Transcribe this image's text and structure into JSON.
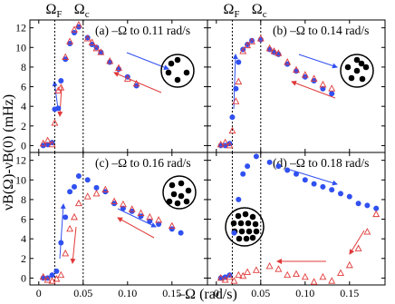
{
  "figure": {
    "xlabel": "–Ω (rad/s)",
    "ylabel": "νB(Ω)-νB(0) (mHz)",
    "vlines": [
      {
        "value": 0.018,
        "symbol": "Ω",
        "sub": "F"
      },
      {
        "value": 0.05,
        "symbol": "Ω",
        "sub": "c"
      }
    ]
  },
  "chart_data": [
    {
      "type": "scatter",
      "title": "(a) –Ω to 0.11 rad/s",
      "xlim": [
        -0.01,
        0.19
      ],
      "ylim": [
        -0.7,
        12.8
      ],
      "xticks": [
        0,
        0.05,
        {
          "value": 0.1,
          "label": "0.10"
        },
        0.15
      ],
      "yticks": [
        0,
        2,
        4,
        6,
        8,
        10,
        12
      ],
      "x": [
        0.005,
        0.01,
        0.015,
        0.018,
        0.022,
        0.025,
        0.03,
        0.035,
        0.04,
        0.045,
        0.055,
        0.06,
        0.065,
        0.07,
        0.08,
        0.09,
        0.1,
        0.11
      ],
      "series": [
        {
          "color": "#3050f0",
          "marker": "circle",
          "values": [
            0,
            0.1,
            0.3,
            3.7,
            3.8,
            6.6,
            8.8,
            10.4,
            11.5,
            12.1,
            11.0,
            10.3,
            10.0,
            9.5,
            8.5,
            7.8,
            7.0,
            6.1
          ]
        },
        {
          "color": "#e03a3a",
          "marker": "triangle",
          "values": [
            0.2,
            0.5,
            0.1,
            2.3,
            5.6,
            5.9,
            9.0,
            10.6,
            11.8,
            12.3,
            10.9,
            10.5,
            9.9,
            9.5,
            8.6,
            7.9,
            6.8,
            6.3
          ]
        }
      ]
    },
    {
      "type": "scatter",
      "title": "(b) –Ω to 0.14 rad/s",
      "xlim": [
        -0.01,
        0.19
      ],
      "ylim": [
        -0.7,
        12.8
      ],
      "xticks": [
        0,
        0.05,
        {
          "value": 0.1,
          "label": "0.10"
        },
        0.15
      ],
      "yticks": [
        0,
        2,
        4,
        6,
        8,
        10,
        12
      ],
      "x": [
        0.005,
        0.01,
        0.015,
        0.018,
        0.022,
        0.025,
        0.03,
        0.035,
        0.04,
        0.05,
        0.06,
        0.065,
        0.07,
        0.08,
        0.09,
        0.1,
        0.11,
        0.12,
        0.13
      ],
      "series": [
        {
          "color": "#3050f0",
          "marker": "circle",
          "values": [
            0,
            0,
            0.2,
            2.9,
            5.8,
            8.5,
            9.8,
            10.3,
            10.7,
            10.8,
            9.8,
            9.5,
            9.3,
            8.3,
            7.6,
            7.0,
            6.6,
            5.8,
            5.3
          ]
        },
        {
          "color": "#e03a3a",
          "marker": "triangle",
          "values": [
            0.1,
            0.3,
            0,
            1.5,
            4.5,
            6.5,
            9.6,
            10.2,
            10.6,
            10.9,
            9.9,
            9.6,
            9.4,
            8.5,
            7.7,
            7.2,
            6.8,
            6.2,
            5.8
          ]
        }
      ]
    },
    {
      "type": "scatter",
      "title": "(c) –Ω to 0.16 rad/s",
      "xlim": [
        -0.01,
        0.19
      ],
      "ylim": [
        -0.7,
        12.8
      ],
      "xticks": [
        0,
        0.05,
        {
          "value": 0.1,
          "label": "0.10"
        },
        0.15
      ],
      "yticks": [
        0,
        2,
        4,
        6,
        8,
        10,
        12
      ],
      "x": [
        0.005,
        0.01,
        0.015,
        0.02,
        0.025,
        0.03,
        0.035,
        0.04,
        0.045,
        0.055,
        0.065,
        0.075,
        0.085,
        0.095,
        0.105,
        0.115,
        0.125,
        0.135,
        0.15,
        0.16
      ],
      "series": [
        {
          "color": "#3050f0",
          "marker": "circle",
          "values": [
            0,
            0,
            0.3,
            0.7,
            3.6,
            6.2,
            8.8,
            9.3,
            10.4,
            10.0,
            9.2,
            8.8,
            7.6,
            7.1,
            6.8,
            6.3,
            5.8,
            5.5,
            5.0,
            4.6
          ]
        },
        {
          "color": "#e03a3a",
          "marker": "triangle",
          "values": [
            0.1,
            -0.2,
            -0.3,
            -0.1,
            0.3,
            2.5,
            5.0,
            6.2,
            7.6,
            8.3,
            8.6,
            9.0,
            7.8,
            7.5,
            7.0,
            6.6,
            6.2,
            5.9,
            5.3,
            null
          ]
        }
      ]
    },
    {
      "type": "scatter",
      "title": "(d) –Ω to 0.18 rad/s",
      "xlim": [
        -0.01,
        0.19
      ],
      "ylim": [
        -0.7,
        12.8
      ],
      "xticks": [
        0,
        0.05,
        {
          "value": 0.1,
          "label": "0.10"
        },
        0.15
      ],
      "yticks": [
        0,
        2,
        4,
        6,
        8,
        10,
        12
      ],
      "x": [
        0.005,
        0.01,
        0.015,
        0.02,
        0.025,
        0.03,
        0.035,
        0.045,
        0.06,
        0.07,
        0.08,
        0.09,
        0.1,
        0.11,
        0.12,
        0.13,
        0.14,
        0.15,
        0.16,
        0.17,
        0.18
      ],
      "series": [
        {
          "color": "#3050f0",
          "marker": "circle",
          "values": [
            0,
            0.1,
            0.3,
            4.6,
            8.0,
            10.6,
            11.4,
            12.4,
            11.8,
            11.4,
            11.0,
            10.6,
            10.0,
            9.6,
            9.3,
            9.0,
            8.6,
            8.3,
            7.6,
            7.4,
            7.1
          ]
        },
        {
          "color": "#e03a3a",
          "marker": "triangle",
          "values": [
            0,
            -0.2,
            0.1,
            -0.3,
            0.3,
            0.2,
            0.6,
            0.8,
            1.2,
            0.9,
            0.3,
            0.4,
            0.1,
            -0.4,
            0.1,
            -0.3,
            0.5,
            1.3,
            3.0,
            4.7,
            6.5
          ]
        }
      ]
    }
  ]
}
